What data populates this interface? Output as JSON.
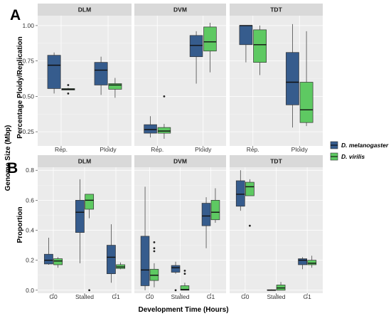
{
  "figure": {
    "panel_labels": [
      "A",
      "B"
    ],
    "shared_ylabel": "Genome Size (Mbp)",
    "legend": [
      {
        "name": "D. melanogaster",
        "color": "#365c8d"
      },
      {
        "name": "D. virilis",
        "color": "#5ec962"
      }
    ]
  },
  "chart_data": [
    {
      "type": "boxplot",
      "panel": "A",
      "ylabel": "Percentage Ploidy/Replication",
      "ylim": [
        0.15,
        1.07
      ],
      "yticks": [
        0.25,
        0.5,
        0.75,
        1.0
      ],
      "ytick_labels": [
        "0.25",
        "0.50",
        "0.75",
        "1.00"
      ],
      "grid": true,
      "facets": [
        {
          "name": "DLM",
          "categories": [
            "Rep.",
            "Ploidy"
          ],
          "boxes": [
            {
              "category": "Rep.",
              "series": "D. melanogaster",
              "min": 0.52,
              "q1": 0.555,
              "median": 0.72,
              "q3": 0.79,
              "max": 0.81,
              "outliers": []
            },
            {
              "category": "Rep.",
              "series": "D. virilis",
              "min": 0.545,
              "q1": 0.545,
              "median": 0.55,
              "q3": 0.555,
              "max": 0.56,
              "outliers": [
                0.58,
                0.52
              ]
            },
            {
              "category": "Ploidy",
              "series": "D. melanogaster",
              "min": 0.51,
              "q1": 0.58,
              "median": 0.685,
              "q3": 0.74,
              "max": 0.78,
              "outliers": []
            },
            {
              "category": "Ploidy",
              "series": "D. virilis",
              "min": 0.49,
              "q1": 0.55,
              "median": 0.58,
              "q3": 0.59,
              "max": 0.63,
              "outliers": []
            }
          ]
        },
        {
          "name": "DVM",
          "categories": [
            "Rep.",
            "Ploidy"
          ],
          "boxes": [
            {
              "category": "Rep.",
              "series": "D. melanogaster",
              "min": 0.21,
              "q1": 0.24,
              "median": 0.265,
              "q3": 0.3,
              "max": 0.36,
              "outliers": []
            },
            {
              "category": "Rep.",
              "series": "D. virilis",
              "min": 0.2,
              "q1": 0.24,
              "median": 0.255,
              "q3": 0.28,
              "max": 0.305,
              "outliers": [
                0.5
              ]
            },
            {
              "category": "Ploidy",
              "series": "D. melanogaster",
              "min": 0.59,
              "q1": 0.78,
              "median": 0.86,
              "q3": 0.93,
              "max": 0.96,
              "outliers": []
            },
            {
              "category": "Ploidy",
              "series": "D. virilis",
              "min": 0.67,
              "q1": 0.82,
              "median": 0.885,
              "q3": 0.99,
              "max": 1.02,
              "outliers": []
            }
          ]
        },
        {
          "name": "TDT",
          "categories": [
            "Rep.",
            "Ploidy"
          ],
          "boxes": [
            {
              "category": "Rep.",
              "series": "D. melanogaster",
              "min": 0.74,
              "q1": 0.865,
              "median": 1.0,
              "q3": 1.0,
              "max": 1.0,
              "outliers": []
            },
            {
              "category": "Rep.",
              "series": "D. virilis",
              "min": 0.65,
              "q1": 0.74,
              "median": 0.865,
              "q3": 0.97,
              "max": 1.0,
              "outliers": []
            },
            {
              "category": "Ploidy",
              "series": "D. melanogaster",
              "min": 0.28,
              "q1": 0.44,
              "median": 0.6,
              "q3": 0.81,
              "max": 1.01,
              "outliers": []
            },
            {
              "category": "Ploidy",
              "series": "D. virilis",
              "min": 0.29,
              "q1": 0.315,
              "median": 0.405,
              "q3": 0.6,
              "max": 0.96,
              "outliers": []
            }
          ]
        }
      ]
    },
    {
      "type": "boxplot",
      "panel": "B",
      "ylabel": "Proportion",
      "xlabel": "Development Time (Hours)",
      "ylim": [
        -0.02,
        0.82
      ],
      "yticks": [
        0.0,
        0.2,
        0.4,
        0.6,
        0.8
      ],
      "ytick_labels": [
        "0.0",
        "0.2",
        "0.4",
        "0.6",
        "0.8"
      ],
      "grid": true,
      "facets": [
        {
          "name": "DLM",
          "categories": [
            "G0",
            "Stalled",
            "G1"
          ],
          "boxes": [
            {
              "category": "G0",
              "series": "D. melanogaster",
              "min": 0.17,
              "q1": 0.175,
              "median": 0.2,
              "q3": 0.24,
              "max": 0.35,
              "outliers": []
            },
            {
              "category": "G0",
              "series": "D. virilis",
              "min": 0.15,
              "q1": 0.17,
              "median": 0.195,
              "q3": 0.21,
              "max": 0.22,
              "outliers": []
            },
            {
              "category": "Stalled",
              "series": "D. melanogaster",
              "min": 0.18,
              "q1": 0.385,
              "median": 0.52,
              "q3": 0.6,
              "max": 0.74,
              "outliers": []
            },
            {
              "category": "Stalled",
              "series": "D. virilis",
              "min": 0.48,
              "q1": 0.54,
              "median": 0.6,
              "q3": 0.64,
              "max": 0.64,
              "outliers": [
                0.0
              ]
            },
            {
              "category": "G1",
              "series": "D. melanogaster",
              "min": 0.05,
              "q1": 0.11,
              "median": 0.22,
              "q3": 0.3,
              "max": 0.44,
              "outliers": []
            },
            {
              "category": "G1",
              "series": "D. virilis",
              "min": 0.14,
              "q1": 0.145,
              "median": 0.155,
              "q3": 0.17,
              "max": 0.185,
              "outliers": []
            }
          ]
        },
        {
          "name": "DVM",
          "categories": [
            "G0",
            "Stalled",
            "G1"
          ],
          "boxes": [
            {
              "category": "G0",
              "series": "D. melanogaster",
              "min": 0.0,
              "q1": 0.03,
              "median": 0.135,
              "q3": 0.36,
              "max": 0.69,
              "outliers": []
            },
            {
              "category": "G0",
              "series": "D. virilis",
              "min": 0.02,
              "q1": 0.065,
              "median": 0.1,
              "q3": 0.14,
              "max": 0.18,
              "outliers": [
                0.32,
                0.28,
                0.26
              ]
            },
            {
              "category": "Stalled",
              "series": "D. melanogaster",
              "min": 0.11,
              "q1": 0.12,
              "median": 0.15,
              "q3": 0.165,
              "max": 0.19,
              "outliers": [
                0.0
              ]
            },
            {
              "category": "Stalled",
              "series": "D. virilis",
              "min": 0.0,
              "q1": 0.0,
              "median": 0.005,
              "q3": 0.03,
              "max": 0.05,
              "outliers": [
                0.13,
                0.11
              ]
            },
            {
              "category": "G1",
              "series": "D. melanogaster",
              "min": 0.28,
              "q1": 0.43,
              "median": 0.495,
              "q3": 0.58,
              "max": 0.62,
              "outliers": []
            },
            {
              "category": "G1",
              "series": "D. virilis",
              "min": 0.45,
              "q1": 0.47,
              "median": 0.52,
              "q3": 0.6,
              "max": 0.68,
              "outliers": []
            }
          ]
        },
        {
          "name": "TDT",
          "categories": [
            "G0",
            "Stalled",
            "G1"
          ],
          "boxes": [
            {
              "category": "G0",
              "series": "D. melanogaster",
              "min": 0.53,
              "q1": 0.56,
              "median": 0.64,
              "q3": 0.73,
              "max": 0.8,
              "outliers": []
            },
            {
              "category": "G0",
              "series": "D. virilis",
              "min": 0.63,
              "q1": 0.63,
              "median": 0.69,
              "q3": 0.72,
              "max": 0.74,
              "outliers": [
                0.43
              ]
            },
            {
              "category": "Stalled",
              "series": "D. melanogaster",
              "min": 0.0,
              "q1": 0.0,
              "median": 0.0,
              "q3": 0.003,
              "max": 0.005,
              "outliers": []
            },
            {
              "category": "Stalled",
              "series": "D. virilis",
              "min": 0.0,
              "q1": 0.0,
              "median": 0.015,
              "q3": 0.035,
              "max": 0.055,
              "outliers": []
            },
            {
              "category": "G1",
              "series": "D. melanogaster",
              "min": 0.14,
              "q1": 0.17,
              "median": 0.2,
              "q3": 0.21,
              "max": 0.22,
              "outliers": []
            },
            {
              "category": "G1",
              "series": "D. virilis",
              "min": 0.15,
              "q1": 0.17,
              "median": 0.18,
              "q3": 0.2,
              "max": 0.23,
              "outliers": []
            }
          ]
        }
      ]
    }
  ]
}
